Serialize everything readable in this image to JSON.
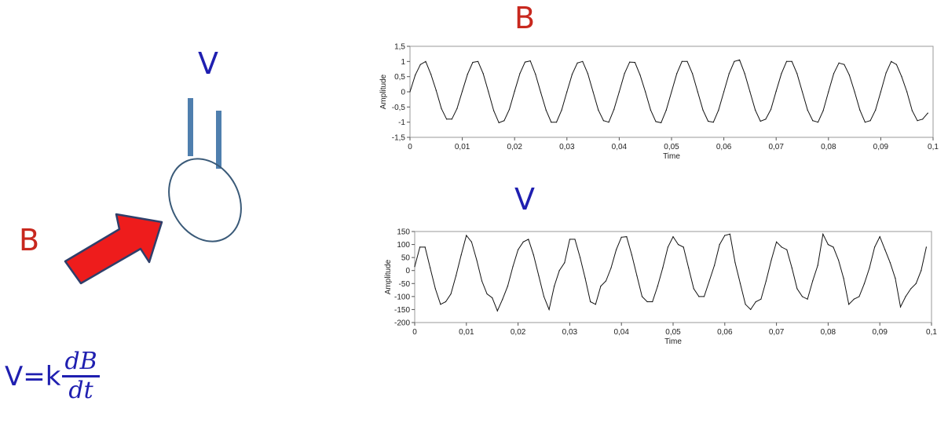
{
  "labels": {
    "coil_voltage": "V",
    "field_input": "B",
    "chart_b_title": "B",
    "chart_v_title": "V"
  },
  "formula": {
    "lhs": "V=k",
    "numerator": "dB",
    "denominator": "dt"
  },
  "colors": {
    "field": "#c8281e",
    "voltage": "#1f1fb0",
    "leads": "#4f7fae",
    "coil": "#3a5a78",
    "arrow_fill": "#ee1c1c",
    "arrow_edge": "#2f3f6a",
    "trace": "#111111"
  },
  "chart_data": [
    {
      "type": "line",
      "title": "B",
      "xlabel": "Time",
      "ylabel": "Amplitude",
      "xlim": [
        0,
        0.1
      ],
      "ylim": [
        -1.5,
        1.5
      ],
      "xticks": [
        "0",
        "0,01",
        "0,02",
        "0,03",
        "0,04",
        "0,05",
        "0,06",
        "0,07",
        "0,08",
        "0,09",
        "0,1"
      ],
      "yticks": [
        "1,5",
        "1",
        "0,5",
        "0",
        "-0,5",
        "-1",
        "-1,5"
      ],
      "series": [
        {
          "x": [
            0,
            0.001,
            0.002,
            0.003,
            0.004,
            0.005,
            0.006,
            0.007,
            0.008,
            0.009,
            0.01,
            0.011,
            0.012,
            0.013,
            0.014,
            0.015,
            0.016,
            0.017,
            0.018,
            0.019,
            0.02,
            0.021,
            0.022,
            0.023,
            0.024,
            0.025,
            0.026,
            0.027,
            0.028,
            0.029,
            0.03,
            0.031,
            0.032,
            0.033,
            0.034,
            0.035,
            0.036,
            0.037,
            0.038,
            0.039,
            0.04,
            0.041,
            0.042,
            0.043,
            0.044,
            0.045,
            0.046,
            0.047,
            0.048,
            0.049,
            0.05,
            0.051,
            0.052,
            0.053,
            0.054,
            0.055,
            0.056,
            0.057,
            0.058,
            0.059,
            0.06,
            0.061,
            0.062,
            0.063,
            0.064,
            0.065,
            0.066,
            0.067,
            0.068,
            0.069,
            0.07,
            0.071,
            0.072,
            0.073,
            0.074,
            0.075,
            0.076,
            0.077,
            0.078,
            0.079,
            0.08,
            0.081,
            0.082,
            0.083,
            0.084,
            0.085,
            0.086,
            0.087,
            0.088,
            0.089,
            0.09,
            0.091,
            0.092,
            0.093,
            0.094,
            0.095,
            0.096,
            0.097,
            0.098,
            0.099
          ],
          "y": [
            0,
            0.55,
            0.9,
            1.0,
            0.58,
            0.05,
            -0.55,
            -0.9,
            -0.9,
            -0.55,
            0.02,
            0.58,
            0.97,
            1.0,
            0.6,
            0.0,
            -0.62,
            -1.02,
            -0.95,
            -0.58,
            0.02,
            0.6,
            0.98,
            1.02,
            0.58,
            -0.02,
            -0.6,
            -1.0,
            -1.0,
            -0.6,
            0.0,
            0.58,
            0.95,
            1.0,
            0.6,
            0.0,
            -0.6,
            -0.95,
            -1.0,
            -0.58,
            0.0,
            0.6,
            0.98,
            0.97,
            0.55,
            0.0,
            -0.6,
            -0.98,
            -1.02,
            -0.6,
            0.0,
            0.6,
            1.0,
            1.0,
            0.6,
            0.0,
            -0.6,
            -0.97,
            -1.0,
            -0.6,
            0.0,
            0.6,
            1.0,
            1.05,
            0.6,
            0.0,
            -0.6,
            -0.97,
            -0.9,
            -0.58,
            0.02,
            0.6,
            1.0,
            1.0,
            0.6,
            0.0,
            -0.6,
            -0.95,
            -1.0,
            -0.62,
            0.0,
            0.6,
            0.95,
            0.9,
            0.55,
            0.0,
            -0.6,
            -1.0,
            -0.95,
            -0.6,
            0.0,
            0.62,
            1.0,
            0.9,
            0.5,
            0.0,
            -0.62,
            -0.95,
            -0.9,
            -0.7
          ]
        }
      ]
    },
    {
      "type": "line",
      "title": "V",
      "xlabel": "Time",
      "ylabel": "Amplitude",
      "xlim": [
        0,
        0.1
      ],
      "ylim": [
        -200,
        150
      ],
      "xticks": [
        "0",
        "0,01",
        "0,02",
        "0,03",
        "0,04",
        "0,05",
        "0,06",
        "0,07",
        "0,08",
        "0,09",
        "0,1"
      ],
      "yticks": [
        "150",
        "100",
        "50",
        "0",
        "-50",
        "-100",
        "-150",
        "-200"
      ],
      "series": [
        {
          "x": [
            0,
            0.001,
            0.002,
            0.003,
            0.004,
            0.005,
            0.006,
            0.007,
            0.008,
            0.009,
            0.01,
            0.011,
            0.012,
            0.013,
            0.014,
            0.015,
            0.016,
            0.017,
            0.018,
            0.019,
            0.02,
            0.021,
            0.022,
            0.023,
            0.024,
            0.025,
            0.026,
            0.027,
            0.028,
            0.029,
            0.03,
            0.031,
            0.032,
            0.033,
            0.034,
            0.035,
            0.036,
            0.037,
            0.038,
            0.039,
            0.04,
            0.041,
            0.042,
            0.043,
            0.044,
            0.045,
            0.046,
            0.047,
            0.048,
            0.049,
            0.05,
            0.051,
            0.052,
            0.053,
            0.054,
            0.055,
            0.056,
            0.057,
            0.058,
            0.059,
            0.06,
            0.061,
            0.062,
            0.063,
            0.064,
            0.065,
            0.066,
            0.067,
            0.068,
            0.069,
            0.07,
            0.071,
            0.072,
            0.073,
            0.074,
            0.075,
            0.076,
            0.077,
            0.078,
            0.079,
            0.08,
            0.081,
            0.082,
            0.083,
            0.084,
            0.085,
            0.086,
            0.087,
            0.088,
            0.089,
            0.09,
            0.091,
            0.092,
            0.093,
            0.094,
            0.095,
            0.096,
            0.097,
            0.098,
            0.099
          ],
          "y": [
            15,
            90,
            90,
            10,
            -70,
            -130,
            -120,
            -90,
            -20,
            60,
            135,
            110,
            40,
            -40,
            -90,
            -105,
            -155,
            -110,
            -60,
            15,
            80,
            110,
            120,
            60,
            -20,
            -100,
            -150,
            -60,
            0,
            30,
            120,
            120,
            50,
            -30,
            -120,
            -130,
            -60,
            -40,
            10,
            80,
            128,
            130,
            60,
            -20,
            -100,
            -120,
            -120,
            -60,
            10,
            90,
            130,
            100,
            90,
            10,
            -70,
            -100,
            -100,
            -40,
            20,
            100,
            135,
            140,
            30,
            -50,
            -130,
            -150,
            -120,
            -110,
            -40,
            40,
            110,
            90,
            80,
            10,
            -70,
            -100,
            -110,
            -40,
            20,
            140,
            100,
            90,
            40,
            -30,
            -130,
            -110,
            -100,
            -50,
            10,
            90,
            130,
            80,
            30,
            -30,
            -140,
            -100,
            -70,
            -50,
            0,
            90
          ]
        }
      ]
    }
  ]
}
